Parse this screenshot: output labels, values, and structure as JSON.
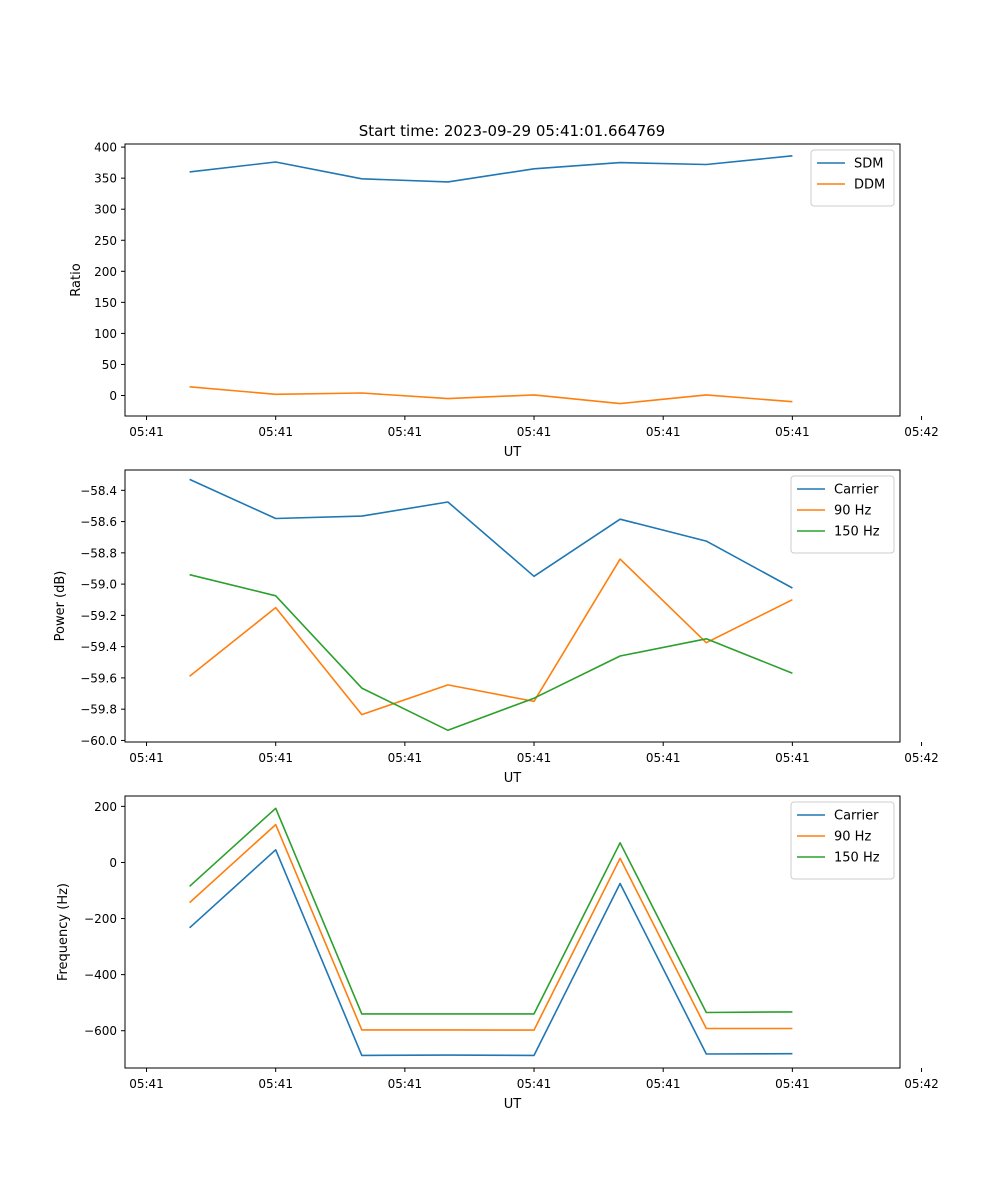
{
  "figure_title": "Start time: 2023-09-29 05:41:01.664769",
  "chart_data": [
    {
      "type": "line",
      "title": "Start time: 2023-09-29 05:41:01.664769",
      "xlabel": "UT",
      "ylabel": "Ratio",
      "x": [
        1,
        2,
        3,
        4,
        5,
        6,
        7,
        8
      ],
      "xlim": [
        0.25,
        9.25
      ],
      "x_ticks": [
        0.5,
        2.0,
        3.5,
        5.0,
        6.5,
        8.0,
        9.5
      ],
      "x_tick_labels": [
        "05:41",
        "05:41",
        "05:41",
        "05:41",
        "05:41",
        "05:41",
        "05:42"
      ],
      "ylim": [
        -33,
        405
      ],
      "y_ticks": [
        0,
        50,
        100,
        150,
        200,
        250,
        300,
        350,
        400
      ],
      "y_tick_labels": [
        "0",
        "50",
        "100",
        "150",
        "200",
        "250",
        "300",
        "350",
        "400"
      ],
      "legend": "top-right",
      "series": [
        {
          "name": "SDM",
          "color": "#1f77b4",
          "values": [
            360,
            376,
            349,
            344,
            365,
            375,
            372,
            386
          ]
        },
        {
          "name": "DDM",
          "color": "#ff7f0e",
          "values": [
            14,
            2,
            4,
            -5,
            1,
            -13,
            1,
            -10
          ]
        }
      ]
    },
    {
      "type": "line",
      "title": "",
      "xlabel": "UT",
      "ylabel": "Power (dB)",
      "x": [
        1,
        2,
        3,
        4,
        5,
        6,
        7,
        8
      ],
      "xlim": [
        0.25,
        9.25
      ],
      "x_ticks": [
        0.5,
        2.0,
        3.5,
        5.0,
        6.5,
        8.0,
        9.5
      ],
      "x_tick_labels": [
        "05:41",
        "05:41",
        "05:41",
        "05:41",
        "05:41",
        "05:41",
        "05:42"
      ],
      "ylim": [
        -60.01,
        -58.27
      ],
      "y_ticks": [
        -60.0,
        -59.8,
        -59.6,
        -59.4,
        -59.2,
        -59.0,
        -58.8,
        -58.6,
        -58.4
      ],
      "y_tick_labels": [
        "−60.0",
        "−59.8",
        "−59.6",
        "−59.4",
        "−59.2",
        "−59.0",
        "−58.8",
        "−58.6",
        "−58.4"
      ],
      "legend": "top-right",
      "series": [
        {
          "name": "Carrier",
          "color": "#1f77b4",
          "values": [
            -58.33,
            -58.58,
            -58.565,
            -58.475,
            -58.95,
            -58.585,
            -58.725,
            -59.025
          ]
        },
        {
          "name": "90 Hz",
          "color": "#ff7f0e",
          "values": [
            -59.59,
            -59.15,
            -59.835,
            -59.645,
            -59.75,
            -58.84,
            -59.375,
            -59.1
          ]
        },
        {
          "name": "150 Hz",
          "color": "#2ca02c",
          "values": [
            -58.94,
            -59.075,
            -59.665,
            -59.935,
            -59.73,
            -59.46,
            -59.35,
            -59.57
          ]
        }
      ]
    },
    {
      "type": "line",
      "title": "",
      "xlabel": "UT",
      "ylabel": "Frequency (Hz)",
      "x": [
        1,
        2,
        3,
        4,
        5,
        6,
        7,
        8
      ],
      "xlim": [
        0.25,
        9.25
      ],
      "x_ticks": [
        0.5,
        2.0,
        3.5,
        5.0,
        6.5,
        8.0,
        9.5
      ],
      "x_tick_labels": [
        "05:41",
        "05:41",
        "05:41",
        "05:41",
        "05:41",
        "05:41",
        "05:42"
      ],
      "ylim": [
        -733,
        237
      ],
      "y_ticks": [
        -600,
        -400,
        -200,
        0,
        200
      ],
      "y_tick_labels": [
        "−600",
        "−400",
        "−200",
        "0",
        "200"
      ],
      "legend": "top-right",
      "series": [
        {
          "name": "Carrier",
          "color": "#1f77b4",
          "values": [
            -233,
            45,
            -688,
            -687,
            -688,
            -75,
            -683,
            -682
          ]
        },
        {
          "name": "90 Hz",
          "color": "#ff7f0e",
          "values": [
            -143,
            135,
            -597,
            -597,
            -598,
            15,
            -592,
            -592
          ]
        },
        {
          "name": "150 Hz",
          "color": "#2ca02c",
          "values": [
            -85,
            193,
            -540,
            -540,
            -540,
            70,
            -535,
            -533
          ]
        }
      ]
    }
  ]
}
